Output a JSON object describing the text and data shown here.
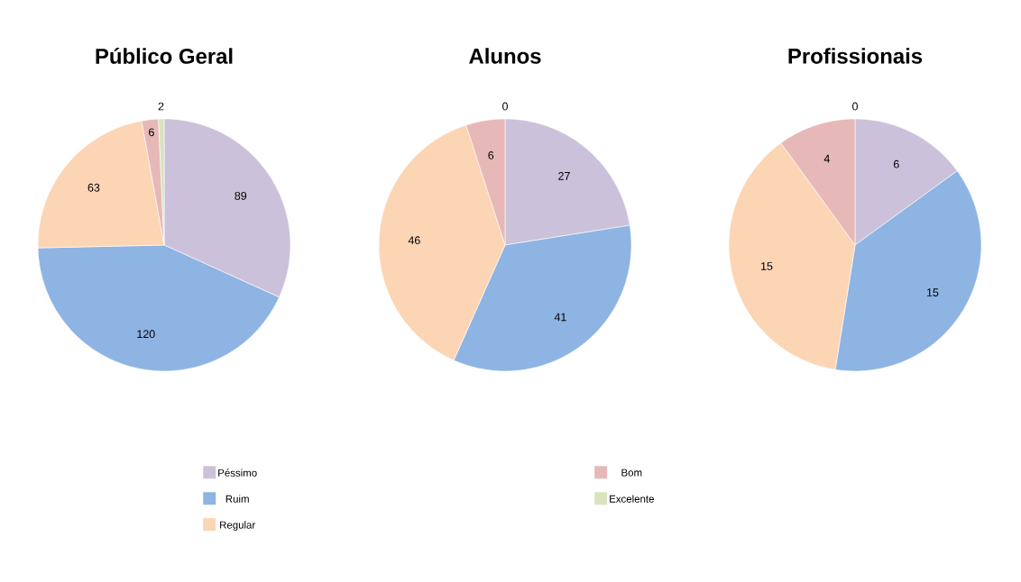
{
  "chart_data": [
    {
      "type": "pie",
      "title": "Público Geral",
      "categories": [
        "Péssimo",
        "Ruim",
        "Regular",
        "Bom",
        "Excelente"
      ],
      "values": [
        89,
        120,
        63,
        6,
        2
      ],
      "colors": [
        "#ccc1da",
        "#8eb4e3",
        "#fcd5b5",
        "#e6b9b8",
        "#d7e4bd"
      ],
      "data_labels": true,
      "legend": "bottom"
    },
    {
      "type": "pie",
      "title": "Alunos",
      "categories": [
        null,
        null,
        null,
        null,
        null
      ],
      "values": [
        27,
        41,
        46,
        6,
        0
      ],
      "colors": [
        "#ccc1da",
        "#8eb4e3",
        "#fcd5b5",
        "#e6b9b8",
        "#d7e4bd"
      ],
      "value_labels": [
        "27",
        "41",
        "46",
        "6",
        "0"
      ]
    },
    {
      "type": "pie",
      "title": "Profissionais",
      "categories": [
        null,
        null,
        null,
        null,
        null
      ],
      "values": [
        6,
        15,
        15,
        4,
        0
      ],
      "colors": [
        "#ccc1da",
        "#8eb4e3",
        "#fcd5b5",
        "#e6b9b8",
        "#d7e4bd"
      ],
      "value_labels": [
        "6",
        "15",
        "15",
        "4",
        "0"
      ]
    }
  ]
}
